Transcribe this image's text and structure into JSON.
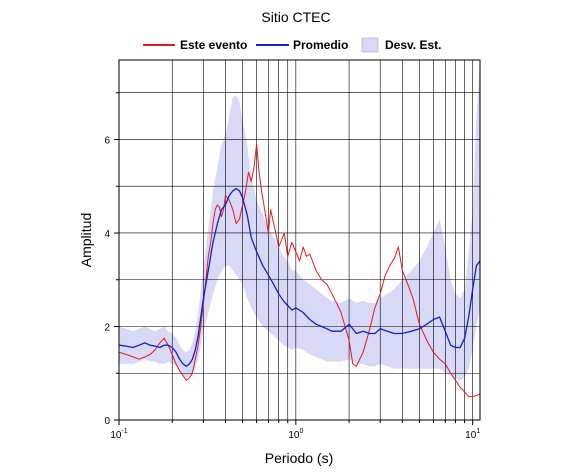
{
  "chart_data": {
    "type": "line",
    "title": "Sitio CTEC",
    "xlabel": "Periodo (s)",
    "ylabel": "Amplitud",
    "x_scale": "log",
    "xlim": [
      0.1,
      11
    ],
    "ylim": [
      0,
      7.7
    ],
    "x_ticks": [
      {
        "value": 0.1,
        "base": "10",
        "exp": "-1"
      },
      {
        "value": 1,
        "base": "10",
        "exp": "0"
      },
      {
        "value": 10,
        "base": "10",
        "exp": "1"
      }
    ],
    "y_ticks": [
      0,
      2,
      4,
      6
    ],
    "grid": true,
    "legend_position": "top",
    "legend": [
      {
        "label": "Este evento",
        "kind": "line",
        "color": "#e8191c"
      },
      {
        "label": "Promedio",
        "kind": "line",
        "color": "#1020d0"
      },
      {
        "label": "Desv. Est.",
        "kind": "band",
        "color": "#d8d8f7"
      }
    ],
    "series": [
      {
        "name": "Este evento",
        "color": "#e8191c",
        "x": [
          0.1,
          0.11,
          0.12,
          0.13,
          0.14,
          0.15,
          0.16,
          0.17,
          0.18,
          0.19,
          0.2,
          0.21,
          0.22,
          0.23,
          0.24,
          0.25,
          0.26,
          0.27,
          0.28,
          0.29,
          0.3,
          0.31,
          0.32,
          0.33,
          0.34,
          0.35,
          0.36,
          0.37,
          0.38,
          0.39,
          0.4,
          0.42,
          0.44,
          0.46,
          0.48,
          0.5,
          0.52,
          0.54,
          0.56,
          0.58,
          0.6,
          0.62,
          0.64,
          0.66,
          0.68,
          0.7,
          0.72,
          0.75,
          0.78,
          0.8,
          0.83,
          0.86,
          0.9,
          0.95,
          1.0,
          1.05,
          1.1,
          1.15,
          1.2,
          1.3,
          1.4,
          1.5,
          1.6,
          1.7,
          1.8,
          1.9,
          2.0,
          2.1,
          2.2,
          2.4,
          2.6,
          2.8,
          3.0,
          3.2,
          3.4,
          3.6,
          3.8,
          4.0,
          4.3,
          4.6,
          5.0,
          5.5,
          6.0,
          6.5,
          7.0,
          7.5,
          8.0,
          8.5,
          9.0,
          9.5,
          10.0,
          11.0
        ],
        "y": [
          1.45,
          1.4,
          1.35,
          1.3,
          1.35,
          1.4,
          1.5,
          1.65,
          1.75,
          1.6,
          1.4,
          1.2,
          1.05,
          0.95,
          0.85,
          0.9,
          1.0,
          1.3,
          1.6,
          2.0,
          2.5,
          3.0,
          3.5,
          3.8,
          4.2,
          4.5,
          4.6,
          4.55,
          4.35,
          4.5,
          4.8,
          4.7,
          4.5,
          4.2,
          4.3,
          4.6,
          4.9,
          5.3,
          5.1,
          5.4,
          5.9,
          5.3,
          4.9,
          4.6,
          4.3,
          4.0,
          4.5,
          4.2,
          3.9,
          3.7,
          3.85,
          4.0,
          3.5,
          3.8,
          3.6,
          3.4,
          3.7,
          3.5,
          3.55,
          3.2,
          3.0,
          2.9,
          2.7,
          2.5,
          2.3,
          2.0,
          1.7,
          1.2,
          1.15,
          1.45,
          1.9,
          2.4,
          2.7,
          3.1,
          3.3,
          3.45,
          3.7,
          3.2,
          2.9,
          2.6,
          2.05,
          1.7,
          1.45,
          1.3,
          1.2,
          1.0,
          0.85,
          0.7,
          0.6,
          0.5,
          0.5,
          0.55
        ]
      },
      {
        "name": "Promedio",
        "color": "#1020d0",
        "x": [
          0.1,
          0.11,
          0.12,
          0.13,
          0.14,
          0.15,
          0.16,
          0.17,
          0.18,
          0.19,
          0.2,
          0.21,
          0.22,
          0.23,
          0.24,
          0.25,
          0.26,
          0.27,
          0.28,
          0.29,
          0.3,
          0.32,
          0.34,
          0.36,
          0.38,
          0.4,
          0.42,
          0.44,
          0.46,
          0.48,
          0.5,
          0.53,
          0.56,
          0.6,
          0.65,
          0.7,
          0.75,
          0.8,
          0.85,
          0.9,
          0.95,
          1.0,
          1.1,
          1.2,
          1.3,
          1.4,
          1.5,
          1.6,
          1.8,
          2.0,
          2.2,
          2.4,
          2.6,
          2.8,
          3.0,
          3.3,
          3.6,
          4.0,
          4.5,
          5.0,
          5.5,
          6.0,
          6.5,
          7.0,
          7.5,
          8.0,
          8.5,
          9.0,
          9.5,
          10.0,
          10.5,
          11.0
        ],
        "y": [
          1.6,
          1.58,
          1.55,
          1.6,
          1.65,
          1.6,
          1.58,
          1.55,
          1.6,
          1.6,
          1.55,
          1.45,
          1.3,
          1.2,
          1.15,
          1.2,
          1.3,
          1.5,
          1.8,
          2.2,
          2.6,
          3.2,
          3.8,
          4.2,
          4.5,
          4.6,
          4.8,
          4.9,
          4.95,
          4.9,
          4.75,
          4.4,
          3.9,
          3.6,
          3.3,
          3.1,
          2.9,
          2.7,
          2.55,
          2.45,
          2.35,
          2.4,
          2.3,
          2.15,
          2.05,
          2.0,
          1.95,
          1.9,
          1.9,
          2.05,
          1.85,
          1.9,
          1.85,
          1.85,
          1.95,
          1.9,
          1.85,
          1.85,
          1.9,
          1.95,
          2.05,
          2.15,
          2.2,
          1.9,
          1.6,
          1.55,
          1.55,
          1.75,
          2.2,
          2.8,
          3.3,
          3.4
        ]
      }
    ],
    "std_band": {
      "name": "Desv. Est.",
      "color": "#d8d8f7",
      "x": [
        0.1,
        0.11,
        0.12,
        0.13,
        0.14,
        0.15,
        0.16,
        0.17,
        0.18,
        0.19,
        0.2,
        0.21,
        0.22,
        0.23,
        0.24,
        0.25,
        0.26,
        0.27,
        0.28,
        0.29,
        0.3,
        0.32,
        0.34,
        0.36,
        0.38,
        0.4,
        0.42,
        0.44,
        0.46,
        0.48,
        0.5,
        0.53,
        0.56,
        0.6,
        0.65,
        0.7,
        0.75,
        0.8,
        0.85,
        0.9,
        0.95,
        1.0,
        1.1,
        1.2,
        1.3,
        1.4,
        1.5,
        1.6,
        1.8,
        2.0,
        2.2,
        2.4,
        2.6,
        2.8,
        3.0,
        3.3,
        3.6,
        4.0,
        4.5,
        5.0,
        5.5,
        6.0,
        6.5,
        7.0,
        7.5,
        8.0,
        8.5,
        9.0,
        9.5,
        10.0,
        10.5,
        11.0
      ],
      "upper": [
        2.0,
        1.95,
        1.9,
        1.95,
        2.0,
        1.95,
        1.9,
        1.95,
        2.0,
        1.9,
        1.85,
        1.75,
        1.6,
        1.5,
        1.45,
        1.5,
        1.65,
        1.9,
        2.3,
        2.8,
        3.3,
        4.1,
        4.9,
        5.4,
        5.9,
        6.1,
        6.5,
        6.9,
        6.95,
        6.8,
        6.4,
        5.9,
        5.2,
        4.7,
        4.4,
        4.1,
        3.9,
        3.7,
        3.5,
        3.4,
        3.2,
        3.2,
        3.0,
        2.9,
        2.8,
        2.7,
        2.6,
        2.55,
        2.5,
        2.6,
        2.5,
        2.55,
        2.5,
        2.5,
        2.6,
        2.7,
        2.8,
        3.0,
        3.2,
        3.4,
        3.7,
        4.0,
        4.3,
        3.7,
        3.0,
        2.7,
        2.6,
        2.8,
        3.6,
        4.5,
        6.5,
        7.7
      ],
      "lower": [
        1.2,
        1.2,
        1.2,
        1.25,
        1.3,
        1.25,
        1.25,
        1.2,
        1.2,
        1.25,
        1.2,
        1.15,
        1.05,
        0.95,
        0.9,
        0.95,
        1.0,
        1.1,
        1.3,
        1.6,
        1.9,
        2.3,
        2.7,
        3.0,
        3.2,
        3.3,
        3.3,
        3.2,
        3.1,
        3.0,
        2.9,
        2.6,
        2.4,
        2.2,
        2.0,
        1.9,
        1.8,
        1.7,
        1.6,
        1.55,
        1.5,
        1.55,
        1.5,
        1.4,
        1.35,
        1.3,
        1.25,
        1.25,
        1.25,
        1.3,
        1.2,
        1.2,
        1.15,
        1.15,
        1.2,
        1.15,
        1.1,
        1.1,
        1.1,
        1.1,
        1.1,
        1.1,
        1.1,
        1.0,
        0.95,
        0.9,
        0.85,
        0.9,
        1.1,
        1.5,
        2.0,
        2.4
      ]
    }
  }
}
